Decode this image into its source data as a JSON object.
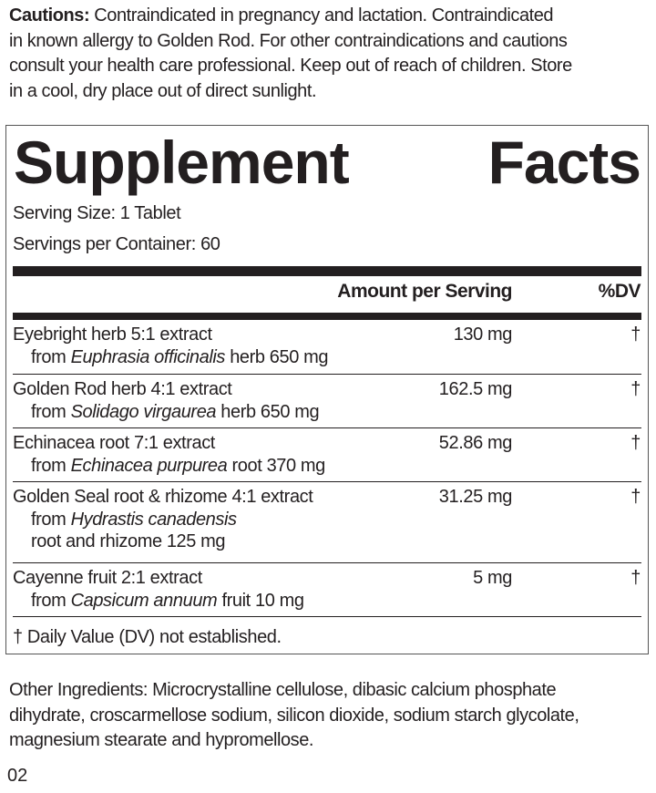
{
  "cautions": {
    "label": "Cautions:",
    "lines": [
      " Contraindicated in pregnancy and lactation. Contraindicated",
      "in known allergy to Golden Rod. For other contraindications and cautions",
      "consult your health care professional. Keep out of reach of children. Store",
      "in a cool, dry place out of direct sunlight."
    ]
  },
  "facts": {
    "title_1": "Supplement",
    "title_2": "Facts",
    "serving_size": "Serving Size: 1 Tablet",
    "servings_per_container": "Servings per Container: 60",
    "col_amount": "Amount per Serving",
    "col_dv": "%DV",
    "rows": [
      {
        "name": "Eyebright herb 5:1 extract",
        "from": "from ",
        "latin": "Euphrasia officinalis",
        "rest": " herb 650 mg",
        "rest2": "",
        "amount": "130 mg",
        "dv": "†"
      },
      {
        "name": "Golden Rod herb 4:1 extract",
        "from": "from ",
        "latin": "Solidago virgaurea",
        "rest": " herb 650 mg",
        "rest2": "",
        "amount": "162.5 mg",
        "dv": "†"
      },
      {
        "name": "Echinacea root 7:1 extract",
        "from": "from ",
        "latin": "Echinacea purpurea",
        "rest": " root 370 mg",
        "rest2": "",
        "amount": "52.86 mg",
        "dv": "†"
      },
      {
        "name": "Golden Seal root & rhizome 4:1 extract",
        "from": "from ",
        "latin": "Hydrastis canadensis",
        "rest": "",
        "rest2": "root and rhizome 125 mg",
        "amount": "31.25 mg",
        "dv": "†"
      },
      {
        "name": "Cayenne fruit 2:1 extract",
        "from": "from ",
        "latin": "Capsicum annuum",
        "rest": " fruit 10 mg",
        "rest2": "",
        "amount": "5 mg",
        "dv": "†"
      }
    ],
    "footnote": "† Daily Value (DV) not established."
  },
  "other_ingredients": [
    "Other Ingredients: Microcrystalline cellulose, dibasic calcium phosphate",
    "dihydrate, croscarmellose sodium, silicon dioxide, sodium starch glycolate,",
    "magnesium stearate and hypromellose."
  ],
  "page_code": "02"
}
